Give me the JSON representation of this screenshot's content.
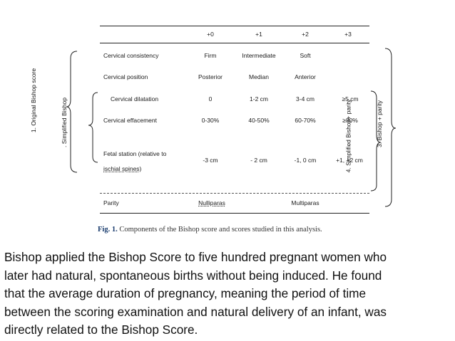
{
  "table": {
    "headers": [
      "+0",
      "+1",
      "+2",
      "+3"
    ],
    "rows": [
      {
        "label": "Cervical consistency",
        "values": [
          "Firm",
          "Intermediate",
          "Soft",
          ""
        ]
      },
      {
        "label": "Cervical position",
        "values": [
          "Posterior",
          "Median",
          "Anterior",
          ""
        ]
      },
      {
        "label": "Cervical dilatation",
        "values": [
          "0",
          "1-2 cm",
          "3-4 cm",
          "≥5 cm"
        ]
      },
      {
        "label": "Cervical effacement",
        "values": [
          "0-30%",
          "40-50%",
          "60-70%",
          "≥80%"
        ]
      },
      {
        "label_line1": "Fetal station (relative to",
        "label_line2": "ischial spines)",
        "values": [
          "-3 cm",
          "- 2 cm",
          "-1, 0 cm",
          "+1, +2 cm"
        ]
      },
      {
        "label": "Parity",
        "values": [
          "Nulliparas",
          "Multiparas"
        ]
      }
    ],
    "left_labels": [
      "1. Original Bishop score",
      ". Simplified Bishop"
    ],
    "right_labels": [
      "4. Simplified Bishop+ parity",
      "3. Bishop + parity"
    ]
  },
  "caption": {
    "fig": "Fig. 1.",
    "text": "Components of the Bishop score and scores studied in this analysis."
  },
  "paragraph": {
    "lines": [
      "Bishop applied the Bishop Score to five hundred pregnant women who",
      "later had natural, spontaneous births without being induced. He found",
      "that the average duration of pregnancy, meaning the period of time",
      "between the scoring examination and natural delivery of an infant, was",
      "directly related to the Bishop Score."
    ]
  }
}
